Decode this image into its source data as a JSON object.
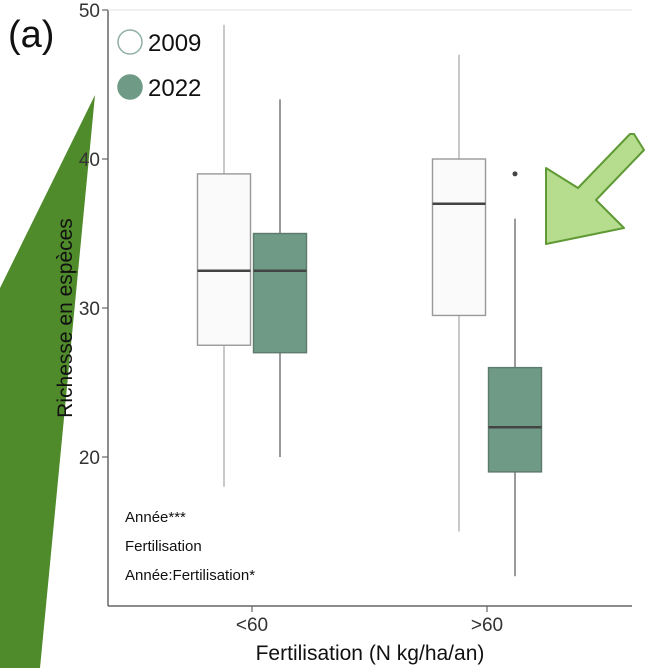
{
  "panel_label": "(a)",
  "chart_data": {
    "type": "boxplot",
    "xlabel": "Fertilisation (N kg/ha/an)",
    "ylabel": "Richesse en espèces",
    "ylim": [
      10,
      50
    ],
    "yticks": [
      20,
      30,
      40,
      50
    ],
    "categories": [
      "<60",
      ">60"
    ],
    "grid": false,
    "legend_position": "top-left",
    "series": [
      {
        "name": "2009",
        "color": "#ffffff",
        "stroke": "#8fb0a2",
        "boxes": [
          {
            "category": "<60",
            "min": 18,
            "q1": 27.5,
            "median": 32.5,
            "q3": 39,
            "max": 49,
            "outliers": []
          },
          {
            "category": ">60",
            "min": 15,
            "q1": 29.5,
            "median": 37,
            "q3": 40,
            "max": 47,
            "outliers": []
          }
        ]
      },
      {
        "name": "2022",
        "color": "#6f9b86",
        "stroke": "#6f9b86",
        "boxes": [
          {
            "category": "<60",
            "min": 20,
            "q1": 27,
            "median": 32.5,
            "q3": 35,
            "max": 44,
            "outliers": []
          },
          {
            "category": ">60",
            "min": 12,
            "q1": 19,
            "median": 22,
            "q3": 26,
            "max": 36,
            "outliers": [
              39
            ]
          }
        ]
      }
    ],
    "annotations": [
      "Année***",
      "Fertilisation",
      "Année:Fertilisation*"
    ]
  },
  "decor": {
    "left_stripe_color": "#4f8a2b",
    "arrow_fill": "#b6dc8e",
    "arrow_stroke": "#5f9a35"
  }
}
